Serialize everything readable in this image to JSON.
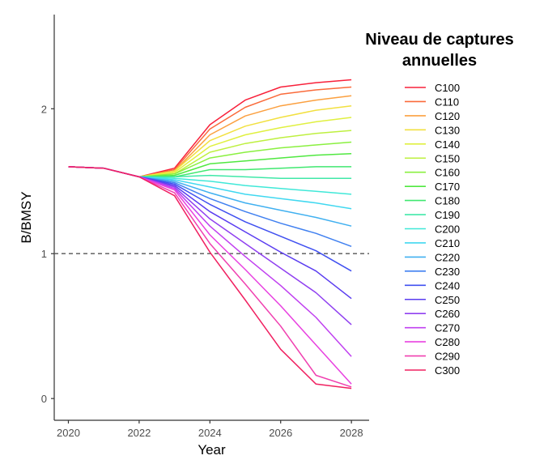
{
  "chart_data": {
    "type": "line",
    "xlabel": "Year",
    "ylabel": "B/BMSY",
    "xlim": [
      2019.6,
      2028.5
    ],
    "ylim": [
      -0.15,
      2.65
    ],
    "x_ticks": [
      2020,
      2022,
      2024,
      2026,
      2028
    ],
    "y_ticks": [
      0,
      1,
      2
    ],
    "reference_line": {
      "y": 1,
      "style": "dashed"
    },
    "grid": false,
    "legend": {
      "title_line1": "Niveau de captures",
      "title_line2": "annuelles",
      "placement": "right"
    },
    "x": [
      2020,
      2021,
      2022,
      2023,
      2024,
      2025,
      2026,
      2027,
      2028
    ],
    "series": [
      {
        "name": "C100",
        "color": "#F8203A",
        "values": [
          1.6,
          1.59,
          1.53,
          1.59,
          1.89,
          2.06,
          2.15,
          2.18,
          2.2
        ]
      },
      {
        "name": "C110",
        "color": "#FA6A3A",
        "values": [
          1.6,
          1.59,
          1.53,
          1.58,
          1.86,
          2.01,
          2.1,
          2.13,
          2.15
        ]
      },
      {
        "name": "C120",
        "color": "#FBA040",
        "values": [
          1.6,
          1.59,
          1.53,
          1.57,
          1.82,
          1.95,
          2.02,
          2.06,
          2.09
        ]
      },
      {
        "name": "C130",
        "color": "#F2E040",
        "values": [
          1.6,
          1.59,
          1.53,
          1.57,
          1.78,
          1.88,
          1.94,
          1.99,
          2.02
        ]
      },
      {
        "name": "C140",
        "color": "#E0F040",
        "values": [
          1.6,
          1.59,
          1.53,
          1.56,
          1.74,
          1.82,
          1.87,
          1.91,
          1.94
        ]
      },
      {
        "name": "C150",
        "color": "#BEF040",
        "values": [
          1.6,
          1.59,
          1.53,
          1.55,
          1.7,
          1.76,
          1.8,
          1.83,
          1.85
        ]
      },
      {
        "name": "C160",
        "color": "#8AF040",
        "values": [
          1.6,
          1.59,
          1.53,
          1.55,
          1.66,
          1.7,
          1.73,
          1.75,
          1.77
        ]
      },
      {
        "name": "C170",
        "color": "#50E840",
        "values": [
          1.6,
          1.59,
          1.53,
          1.54,
          1.62,
          1.64,
          1.66,
          1.68,
          1.69
        ]
      },
      {
        "name": "C180",
        "color": "#40E870",
        "values": [
          1.6,
          1.59,
          1.53,
          1.53,
          1.58,
          1.58,
          1.59,
          1.6,
          1.6
        ]
      },
      {
        "name": "C190",
        "color": "#40E8A8",
        "values": [
          1.6,
          1.59,
          1.53,
          1.53,
          1.54,
          1.53,
          1.52,
          1.52,
          1.52
        ]
      },
      {
        "name": "C200",
        "color": "#40E8D8",
        "values": [
          1.6,
          1.59,
          1.53,
          1.52,
          1.5,
          1.47,
          1.45,
          1.43,
          1.41
        ]
      },
      {
        "name": "C210",
        "color": "#40D8F0",
        "values": [
          1.6,
          1.59,
          1.53,
          1.51,
          1.46,
          1.41,
          1.38,
          1.35,
          1.31
        ]
      },
      {
        "name": "C220",
        "color": "#40B0F0",
        "values": [
          1.6,
          1.59,
          1.53,
          1.5,
          1.42,
          1.35,
          1.3,
          1.25,
          1.19
        ]
      },
      {
        "name": "C230",
        "color": "#4080F0",
        "values": [
          1.6,
          1.59,
          1.53,
          1.49,
          1.38,
          1.29,
          1.21,
          1.14,
          1.05
        ]
      },
      {
        "name": "C240",
        "color": "#4050F0",
        "values": [
          1.6,
          1.59,
          1.53,
          1.48,
          1.34,
          1.22,
          1.12,
          1.02,
          0.88
        ]
      },
      {
        "name": "C250",
        "color": "#5A3CF0",
        "values": [
          1.6,
          1.59,
          1.53,
          1.47,
          1.29,
          1.15,
          1.01,
          0.88,
          0.69
        ]
      },
      {
        "name": "C260",
        "color": "#9040F0",
        "values": [
          1.6,
          1.59,
          1.53,
          1.46,
          1.24,
          1.07,
          0.9,
          0.73,
          0.51
        ]
      },
      {
        "name": "C270",
        "color": "#C040F0",
        "values": [
          1.6,
          1.59,
          1.53,
          1.45,
          1.19,
          0.98,
          0.78,
          0.56,
          0.29
        ]
      },
      {
        "name": "C280",
        "color": "#E840E0",
        "values": [
          1.6,
          1.59,
          1.53,
          1.44,
          1.13,
          0.89,
          0.64,
          0.37,
          0.1
        ]
      },
      {
        "name": "C290",
        "color": "#F040B0",
        "values": [
          1.6,
          1.59,
          1.53,
          1.42,
          1.07,
          0.79,
          0.5,
          0.16,
          0.08
        ]
      },
      {
        "name": "C300",
        "color": "#F02060",
        "values": [
          1.6,
          1.59,
          1.53,
          1.4,
          1.01,
          0.68,
          0.34,
          0.1,
          0.07
        ]
      }
    ]
  }
}
